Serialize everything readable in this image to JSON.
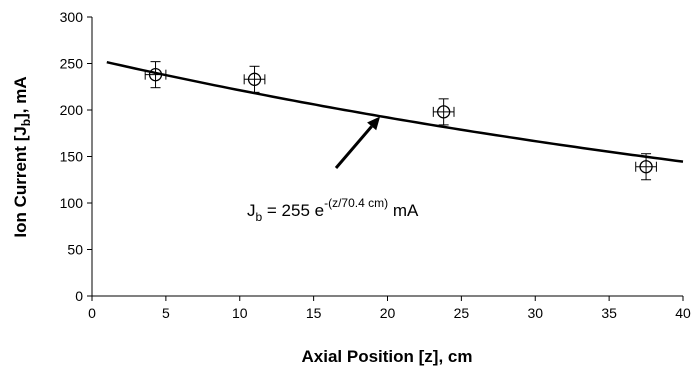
{
  "chart_data": {
    "type": "scatter",
    "xlabel": "Axial Position [z], cm",
    "ylabel_main": "Ion Current [J",
    "ylabel_sub": "b",
    "ylabel_tail": "], mA",
    "xlim": [
      0,
      40
    ],
    "ylim": [
      0,
      300
    ],
    "xticks": [
      0,
      5,
      10,
      15,
      20,
      25,
      30,
      35,
      40
    ],
    "yticks": [
      0,
      50,
      100,
      150,
      200,
      250,
      300
    ],
    "grid": false,
    "series": [
      {
        "kind": "points",
        "marker": "open-circle-crosshair",
        "points": [
          {
            "x": 4.3,
            "y": 238,
            "yerr": 14,
            "xerr": 0.7
          },
          {
            "x": 11.0,
            "y": 233,
            "yerr": 14,
            "xerr": 0.7
          },
          {
            "x": 23.8,
            "y": 198,
            "yerr": 14,
            "xerr": 0.7
          },
          {
            "x": 37.5,
            "y": 139,
            "yerr": 14,
            "xerr": 0.7
          }
        ]
      },
      {
        "kind": "fit-line",
        "equation_amplitude": 255,
        "equation_length": 70.4,
        "x_start": 1,
        "x_end": 40
      }
    ],
    "annotation": {
      "text_main": "J",
      "text_sub": "b",
      "text_mid": " = 255 e",
      "text_sup": "-(z/70.4 cm)",
      "text_tail": " mA",
      "arrow_target": {
        "x": 19.5,
        "y": 193
      }
    }
  }
}
